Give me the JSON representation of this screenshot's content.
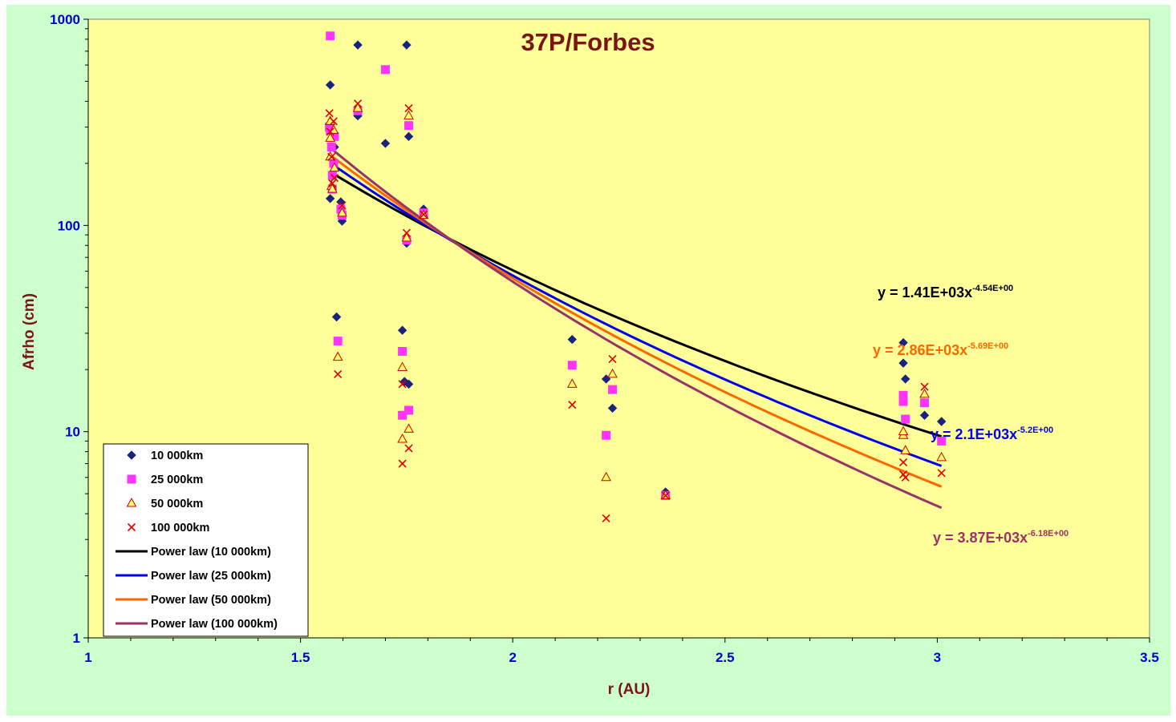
{
  "colors": {
    "outer_bg": "#ccffcc",
    "plot_bg": "#ffff99",
    "title": "#7b1414",
    "axis_label": "#7b1414",
    "tick_label": "#0000cc",
    "series_10000": "#1a237e",
    "series_25000": "#ff33ff",
    "series_50000_fill": "#ffff66",
    "series_50000_stroke": "#cc0000",
    "series_100000": "#dd0000",
    "fit_10000": "#000000",
    "fit_25000": "#0000ee",
    "fit_50000": "#ff6600",
    "fit_100000": "#993366"
  },
  "chart_data": {
    "type": "scatter",
    "title": "37P/Forbes",
    "xlabel": "r (AU)",
    "ylabel": "Afrho (cm)",
    "xlim": [
      1,
      3.5
    ],
    "ylim": [
      1,
      1000
    ],
    "yscale": "log",
    "grid": false,
    "legend_position": "bottom-left",
    "x_ticks": [
      "1",
      "1.5",
      "2",
      "2.5",
      "3",
      "3.5"
    ],
    "y_ticks": [
      "1",
      "10",
      "100",
      "1000"
    ],
    "series": [
      {
        "name": "10 000km",
        "marker": "diamond",
        "points": [
          [
            1.57,
            480
          ],
          [
            1.57,
            135
          ],
          [
            1.58,
            240
          ],
          [
            1.585,
            36
          ],
          [
            1.595,
            130
          ],
          [
            1.598,
            105
          ],
          [
            1.635,
            750
          ],
          [
            1.635,
            340
          ],
          [
            1.7,
            250
          ],
          [
            1.74,
            31
          ],
          [
            1.745,
            17.5
          ],
          [
            1.75,
            82
          ],
          [
            1.75,
            750
          ],
          [
            1.755,
            17
          ],
          [
            1.755,
            270
          ],
          [
            1.79,
            120
          ],
          [
            2.14,
            28
          ],
          [
            2.22,
            18
          ],
          [
            2.235,
            13
          ],
          [
            2.36,
            5.1
          ],
          [
            2.92,
            27
          ],
          [
            2.92,
            21.5
          ],
          [
            2.925,
            18
          ],
          [
            2.97,
            12
          ],
          [
            3.01,
            11.2
          ]
        ]
      },
      {
        "name": "25 000km",
        "marker": "square",
        "points": [
          [
            1.57,
            830
          ],
          [
            1.568,
            300
          ],
          [
            1.57,
            290
          ],
          [
            1.573,
            240
          ],
          [
            1.575,
            175
          ],
          [
            1.575,
            150
          ],
          [
            1.578,
            200
          ],
          [
            1.58,
            270
          ],
          [
            1.588,
            27.5
          ],
          [
            1.595,
            120
          ],
          [
            1.598,
            112
          ],
          [
            1.635,
            360
          ],
          [
            1.7,
            570
          ],
          [
            1.74,
            24.5
          ],
          [
            1.74,
            12
          ],
          [
            1.75,
            85
          ],
          [
            1.755,
            12.7
          ],
          [
            1.755,
            305
          ],
          [
            1.79,
            115
          ],
          [
            2.14,
            21
          ],
          [
            2.22,
            9.6
          ],
          [
            2.235,
            16
          ],
          [
            2.36,
            4.9
          ],
          [
            2.92,
            15
          ],
          [
            2.92,
            14
          ],
          [
            2.925,
            11.5
          ],
          [
            2.97,
            13.8
          ],
          [
            3.01,
            9
          ]
        ]
      },
      {
        "name": "50 000km",
        "marker": "triangle",
        "points": [
          [
            1.57,
            320
          ],
          [
            1.57,
            265
          ],
          [
            1.57,
            215
          ],
          [
            1.573,
            155
          ],
          [
            1.575,
            150
          ],
          [
            1.578,
            290
          ],
          [
            1.58,
            190
          ],
          [
            1.588,
            23
          ],
          [
            1.598,
            115
          ],
          [
            1.635,
            370
          ],
          [
            1.74,
            20.5
          ],
          [
            1.74,
            9.2
          ],
          [
            1.75,
            87
          ],
          [
            1.755,
            10.3
          ],
          [
            1.755,
            340
          ],
          [
            1.79,
            112
          ],
          [
            2.14,
            17
          ],
          [
            2.22,
            6
          ],
          [
            2.235,
            19
          ],
          [
            2.36,
            4.9
          ],
          [
            2.92,
            9.6
          ],
          [
            2.92,
            10
          ],
          [
            2.925,
            8.1
          ],
          [
            2.97,
            15.2
          ],
          [
            3.01,
            7.5
          ]
        ]
      },
      {
        "name": "100 000km",
        "marker": "x",
        "points": [
          [
            1.568,
            350
          ],
          [
            1.57,
            285
          ],
          [
            1.573,
            215
          ],
          [
            1.575,
            160
          ],
          [
            1.578,
            320
          ],
          [
            1.58,
            170
          ],
          [
            1.588,
            19
          ],
          [
            1.598,
            125
          ],
          [
            1.635,
            390
          ],
          [
            1.74,
            17
          ],
          [
            1.74,
            7
          ],
          [
            1.75,
            92
          ],
          [
            1.755,
            8.3
          ],
          [
            1.755,
            370
          ],
          [
            1.79,
            113
          ],
          [
            2.14,
            13.5
          ],
          [
            2.22,
            3.8
          ],
          [
            2.235,
            22.5
          ],
          [
            2.36,
            4.9
          ],
          [
            2.92,
            7.1
          ],
          [
            2.92,
            6.2
          ],
          [
            2.925,
            6
          ],
          [
            2.97,
            16.5
          ],
          [
            3.01,
            6.3
          ]
        ]
      }
    ],
    "fits": [
      {
        "name": "Power law (10 000km)",
        "equation_base": "y = 1.41E+03x",
        "equation_exp": "-4.54E+00",
        "a": 1410,
        "b": -4.54,
        "x_range": [
          1.57,
          3.01
        ]
      },
      {
        "name": "Power law (25 000km)",
        "equation_base": "y = 2.1E+03x",
        "equation_exp": "-5.2E+00",
        "a": 2100,
        "b": -5.2,
        "x_range": [
          1.57,
          3.01
        ]
      },
      {
        "name": "Power law (50 000km)",
        "equation_base": "y = 2.86E+03x",
        "equation_exp": "-5.69E+00",
        "a": 2860,
        "b": -5.69,
        "x_range": [
          1.57,
          3.01
        ]
      },
      {
        "name": "Power law (100 000km)",
        "equation_base": "y = 3.87E+03x",
        "equation_exp": "-6.18E+00",
        "a": 3870,
        "b": -6.18,
        "x_range": [
          1.57,
          3.01
        ]
      }
    ]
  }
}
